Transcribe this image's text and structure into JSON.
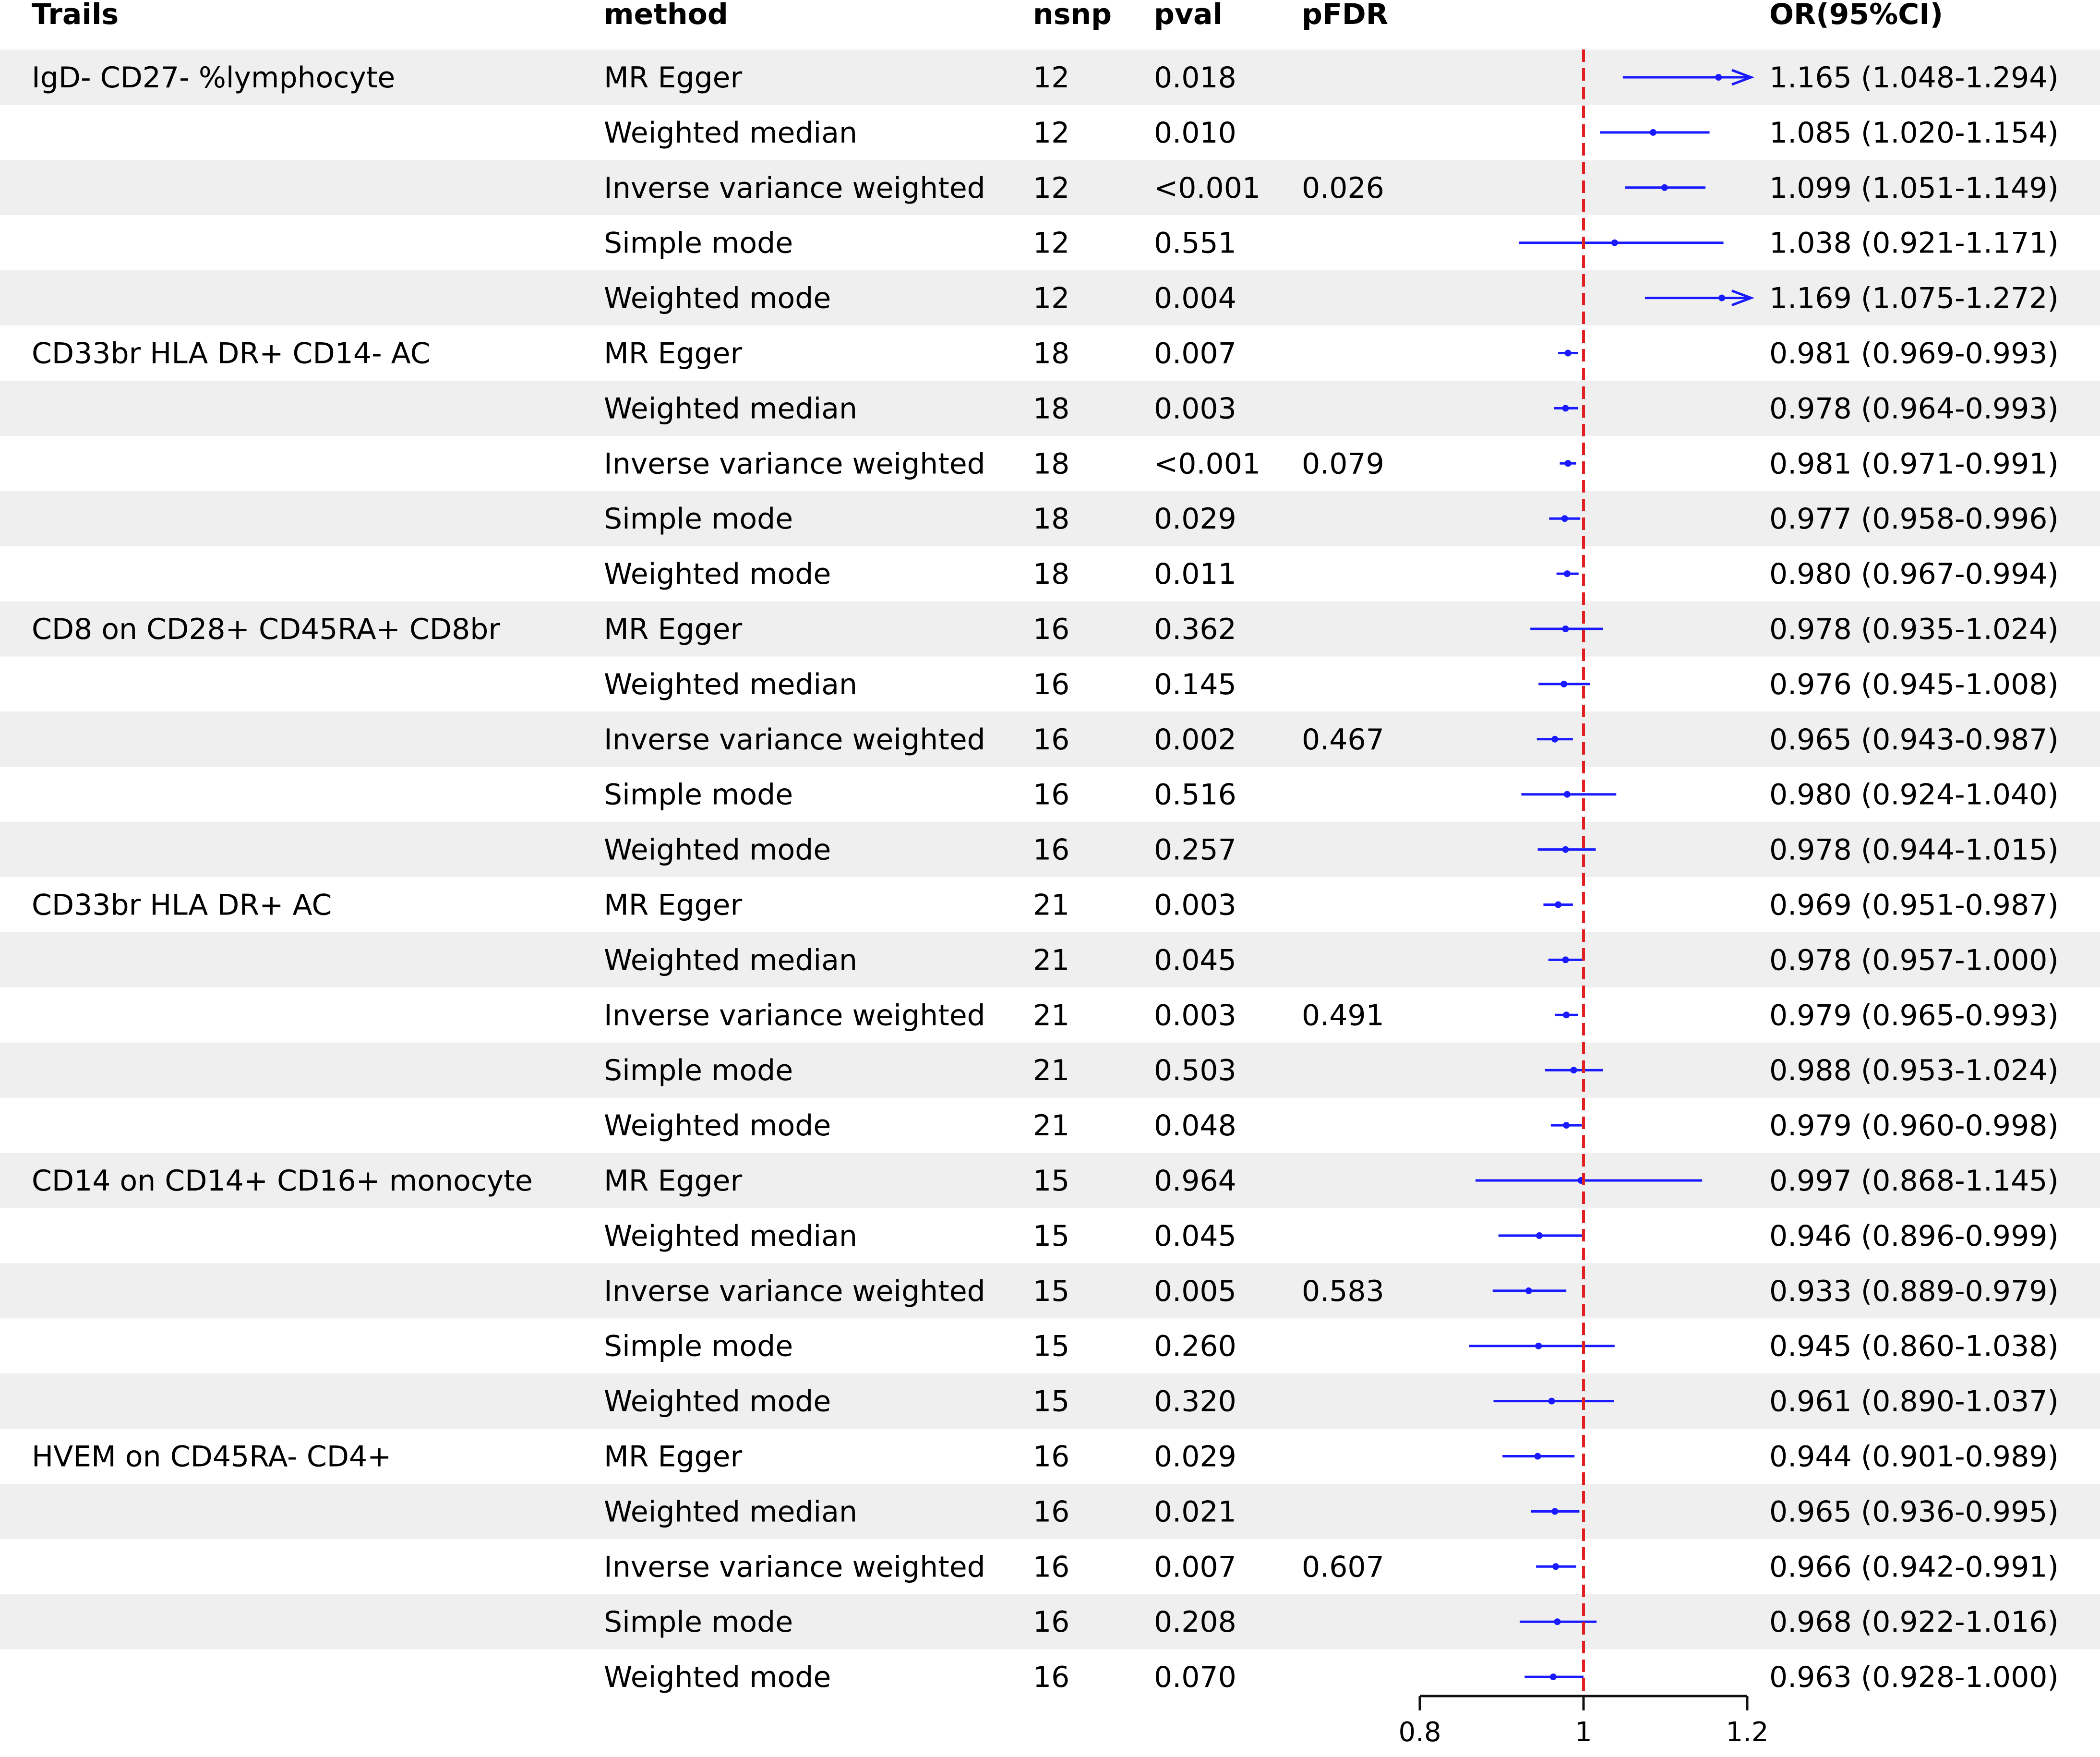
{
  "headers": {
    "trait": "Trails",
    "method": "method",
    "nsnp": "nsnp",
    "pval": "pval",
    "pfdr": "pFDR",
    "or": "OR(95%CI)"
  },
  "colors": {
    "marker": "#1a1aff",
    "reference_line": "#e02020",
    "zebra": "#efefef"
  },
  "chart_data": {
    "type": "forest",
    "x_scale_limits": [
      0.8,
      1.2
    ],
    "x_ticks": [
      "0.8",
      "1",
      "1.2"
    ],
    "reference_value": 1,
    "rows": [
      {
        "trait": "IgD- CD27- %lymphocyte",
        "method": "MR Egger",
        "nsnp": "12",
        "pval": "0.018",
        "pfdr": "",
        "or_text": "1.165 (1.048-1.294)",
        "or": 1.165,
        "lo": 1.048,
        "hi": 1.294
      },
      {
        "trait": "",
        "method": "Weighted median",
        "nsnp": "12",
        "pval": "0.010",
        "pfdr": "",
        "or_text": "1.085 (1.020-1.154)",
        "or": 1.085,
        "lo": 1.02,
        "hi": 1.154
      },
      {
        "trait": "",
        "method": "Inverse variance weighted",
        "nsnp": "12",
        "pval": "<0.001",
        "pfdr": "0.026",
        "or_text": "1.099 (1.051-1.149)",
        "or": 1.099,
        "lo": 1.051,
        "hi": 1.149
      },
      {
        "trait": "",
        "method": "Simple mode",
        "nsnp": "12",
        "pval": "0.551",
        "pfdr": "",
        "or_text": "1.038 (0.921-1.171)",
        "or": 1.038,
        "lo": 0.921,
        "hi": 1.171
      },
      {
        "trait": "",
        "method": "Weighted mode",
        "nsnp": "12",
        "pval": "0.004",
        "pfdr": "",
        "or_text": "1.169 (1.075-1.272)",
        "or": 1.169,
        "lo": 1.075,
        "hi": 1.272
      },
      {
        "trait": "CD33br HLA DR+ CD14- AC",
        "method": "MR Egger",
        "nsnp": "18",
        "pval": "0.007",
        "pfdr": "",
        "or_text": "0.981 (0.969-0.993)",
        "or": 0.981,
        "lo": 0.969,
        "hi": 0.993
      },
      {
        "trait": "",
        "method": "Weighted median",
        "nsnp": "18",
        "pval": "0.003",
        "pfdr": "",
        "or_text": "0.978 (0.964-0.993)",
        "or": 0.978,
        "lo": 0.964,
        "hi": 0.993
      },
      {
        "trait": "",
        "method": "Inverse variance weighted",
        "nsnp": "18",
        "pval": "<0.001",
        "pfdr": "0.079",
        "or_text": "0.981 (0.971-0.991)",
        "or": 0.981,
        "lo": 0.971,
        "hi": 0.991
      },
      {
        "trait": "",
        "method": "Simple mode",
        "nsnp": "18",
        "pval": "0.029",
        "pfdr": "",
        "or_text": "0.977 (0.958-0.996)",
        "or": 0.977,
        "lo": 0.958,
        "hi": 0.996
      },
      {
        "trait": "",
        "method": "Weighted mode",
        "nsnp": "18",
        "pval": "0.011",
        "pfdr": "",
        "or_text": "0.980 (0.967-0.994)",
        "or": 0.98,
        "lo": 0.967,
        "hi": 0.994
      },
      {
        "trait": "CD8 on CD28+ CD45RA+ CD8br",
        "method": "MR Egger",
        "nsnp": "16",
        "pval": "0.362",
        "pfdr": "",
        "or_text": "0.978 (0.935-1.024)",
        "or": 0.978,
        "lo": 0.935,
        "hi": 1.024
      },
      {
        "trait": "",
        "method": "Weighted median",
        "nsnp": "16",
        "pval": "0.145",
        "pfdr": "",
        "or_text": "0.976 (0.945-1.008)",
        "or": 0.976,
        "lo": 0.945,
        "hi": 1.008
      },
      {
        "trait": "",
        "method": "Inverse variance weighted",
        "nsnp": "16",
        "pval": "0.002",
        "pfdr": "0.467",
        "or_text": "0.965 (0.943-0.987)",
        "or": 0.965,
        "lo": 0.943,
        "hi": 0.987
      },
      {
        "trait": "",
        "method": "Simple mode",
        "nsnp": "16",
        "pval": "0.516",
        "pfdr": "",
        "or_text": "0.980 (0.924-1.040)",
        "or": 0.98,
        "lo": 0.924,
        "hi": 1.04
      },
      {
        "trait": "",
        "method": "Weighted mode",
        "nsnp": "16",
        "pval": "0.257",
        "pfdr": "",
        "or_text": "0.978 (0.944-1.015)",
        "or": 0.978,
        "lo": 0.944,
        "hi": 1.015
      },
      {
        "trait": "CD33br HLA DR+ AC",
        "method": "MR Egger",
        "nsnp": "21",
        "pval": "0.003",
        "pfdr": "",
        "or_text": "0.969 (0.951-0.987)",
        "or": 0.969,
        "lo": 0.951,
        "hi": 0.987
      },
      {
        "trait": "",
        "method": "Weighted median",
        "nsnp": "21",
        "pval": "0.045",
        "pfdr": "",
        "or_text": "0.978 (0.957-1.000)",
        "or": 0.978,
        "lo": 0.957,
        "hi": 1.0
      },
      {
        "trait": "",
        "method": "Inverse variance weighted",
        "nsnp": "21",
        "pval": "0.003",
        "pfdr": "0.491",
        "or_text": "0.979 (0.965-0.993)",
        "or": 0.979,
        "lo": 0.965,
        "hi": 0.993
      },
      {
        "trait": "",
        "method": "Simple mode",
        "nsnp": "21",
        "pval": "0.503",
        "pfdr": "",
        "or_text": "0.988 (0.953-1.024)",
        "or": 0.988,
        "lo": 0.953,
        "hi": 1.024
      },
      {
        "trait": "",
        "method": "Weighted mode",
        "nsnp": "21",
        "pval": "0.048",
        "pfdr": "",
        "or_text": "0.979 (0.960-0.998)",
        "or": 0.979,
        "lo": 0.96,
        "hi": 0.998
      },
      {
        "trait": "CD14 on CD14+ CD16+  monocyte",
        "method": "MR Egger",
        "nsnp": "15",
        "pval": "0.964",
        "pfdr": "",
        "or_text": "0.997 (0.868-1.145)",
        "or": 0.997,
        "lo": 0.868,
        "hi": 1.145
      },
      {
        "trait": "",
        "method": "Weighted median",
        "nsnp": "15",
        "pval": "0.045",
        "pfdr": "",
        "or_text": "0.946 (0.896-0.999)",
        "or": 0.946,
        "lo": 0.896,
        "hi": 0.999
      },
      {
        "trait": "",
        "method": "Inverse variance weighted",
        "nsnp": "15",
        "pval": "0.005",
        "pfdr": "0.583",
        "or_text": "0.933 (0.889-0.979)",
        "or": 0.933,
        "lo": 0.889,
        "hi": 0.979
      },
      {
        "trait": "",
        "method": "Simple mode",
        "nsnp": "15",
        "pval": "0.260",
        "pfdr": "",
        "or_text": "0.945 (0.860-1.038)",
        "or": 0.945,
        "lo": 0.86,
        "hi": 1.038
      },
      {
        "trait": "",
        "method": "Weighted mode",
        "nsnp": "15",
        "pval": "0.320",
        "pfdr": "",
        "or_text": "0.961 (0.890-1.037)",
        "or": 0.961,
        "lo": 0.89,
        "hi": 1.037
      },
      {
        "trait": "HVEM on CD45RA- CD4+",
        "method": "MR Egger",
        "nsnp": "16",
        "pval": "0.029",
        "pfdr": "",
        "or_text": "0.944 (0.901-0.989)",
        "or": 0.944,
        "lo": 0.901,
        "hi": 0.989
      },
      {
        "trait": "",
        "method": "Weighted median",
        "nsnp": "16",
        "pval": "0.021",
        "pfdr": "",
        "or_text": "0.965 (0.936-0.995)",
        "or": 0.965,
        "lo": 0.936,
        "hi": 0.995
      },
      {
        "trait": "",
        "method": "Inverse variance weighted",
        "nsnp": "16",
        "pval": "0.007",
        "pfdr": "0.607",
        "or_text": "0.966 (0.942-0.991)",
        "or": 0.966,
        "lo": 0.942,
        "hi": 0.991
      },
      {
        "trait": "",
        "method": "Simple mode",
        "nsnp": "16",
        "pval": "0.208",
        "pfdr": "",
        "or_text": "0.968 (0.922-1.016)",
        "or": 0.968,
        "lo": 0.922,
        "hi": 1.016
      },
      {
        "trait": "",
        "method": "Weighted mode",
        "nsnp": "16",
        "pval": "0.070",
        "pfdr": "",
        "or_text": "0.963 (0.928-1.000)",
        "or": 0.963,
        "lo": 0.928,
        "hi": 1.0
      }
    ]
  }
}
